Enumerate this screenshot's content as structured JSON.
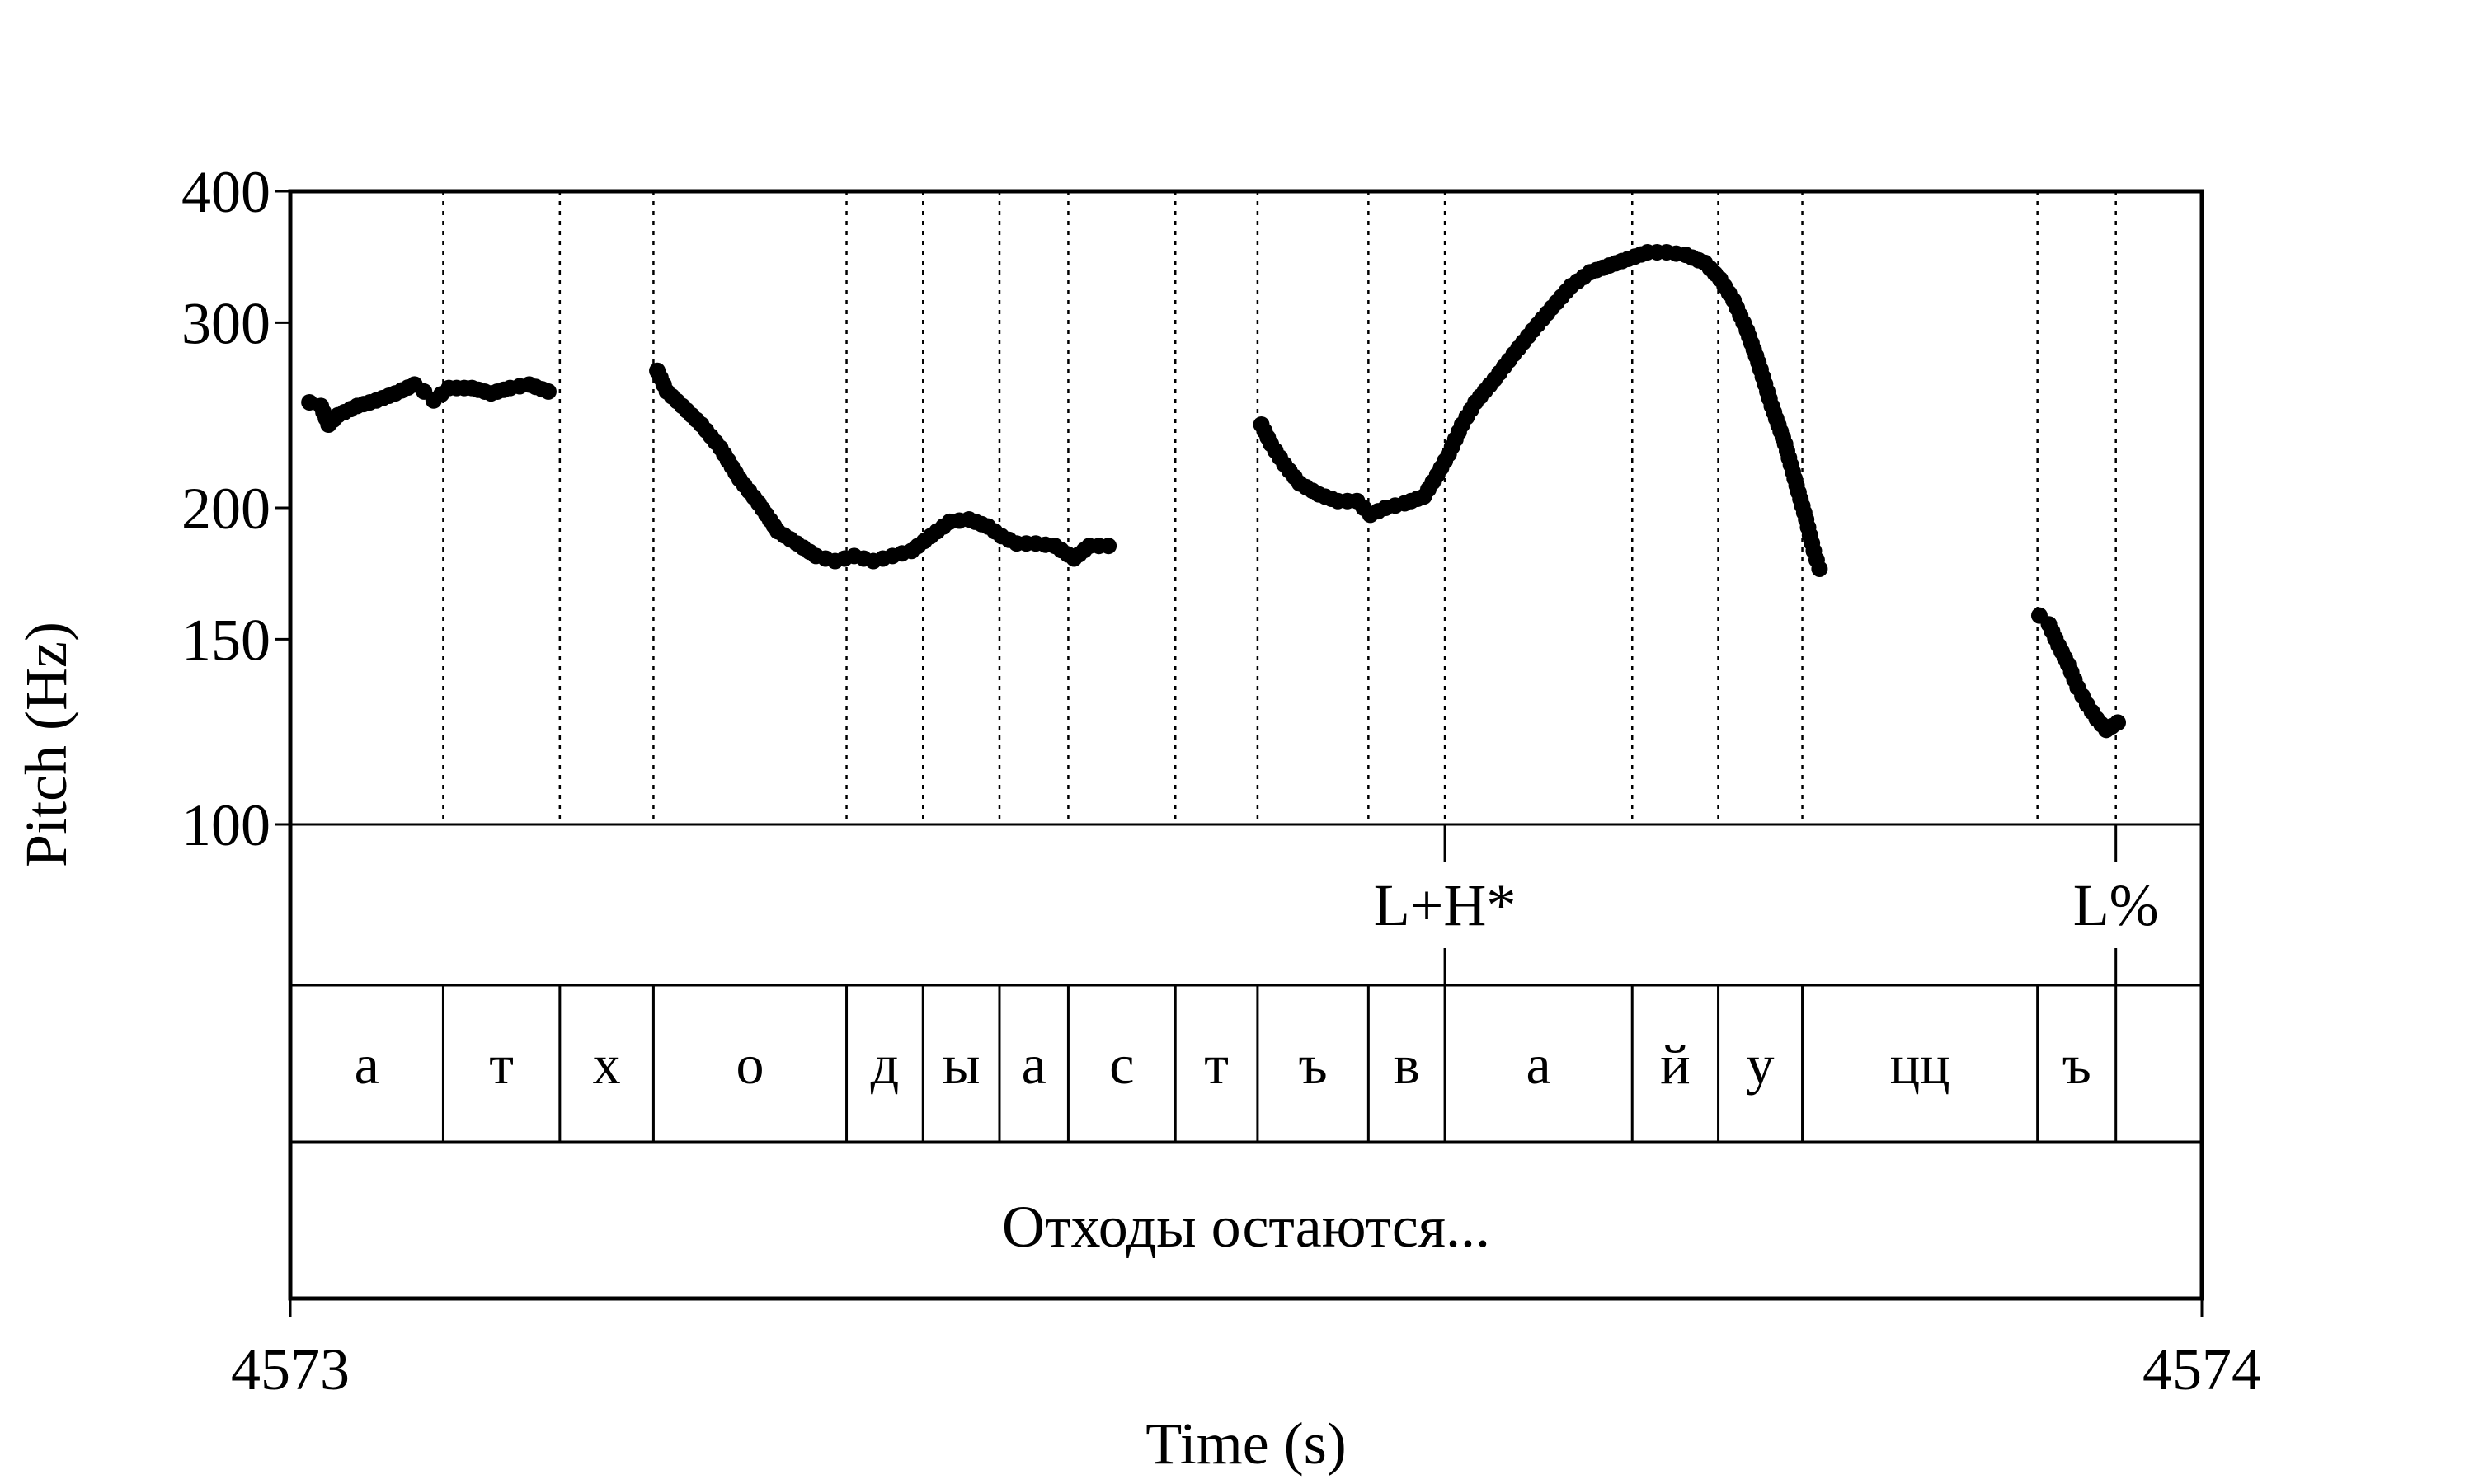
{
  "chart_data": {
    "type": "scatter",
    "title": "",
    "xlabel": "Time (s)",
    "ylabel": "Pitch (Hz)",
    "xlim": [
      4573,
      4574
    ],
    "ylim": [
      100,
      400
    ],
    "yscale": "log",
    "x_ticks": [
      "4573",
      "4574"
    ],
    "y_ticks": [
      {
        "value": 100,
        "label": "100"
      },
      {
        "value": 150,
        "label": "150"
      },
      {
        "value": 200,
        "label": "200"
      },
      {
        "value": 300,
        "label": "300"
      },
      {
        "value": 400,
        "label": "400"
      }
    ],
    "segment_boundaries": [
      4573.08,
      4573.141,
      4573.19,
      4573.291,
      4573.331,
      4573.371,
      4573.407,
      4573.463,
      4573.506,
      4573.564,
      4573.604,
      4573.702,
      4573.747,
      4573.791,
      4573.914,
      4573.955
    ],
    "segments": [
      {
        "label": "а",
        "start": 4573.0,
        "end": 4573.08
      },
      {
        "label": "т",
        "start": 4573.08,
        "end": 4573.141
      },
      {
        "label": "х",
        "start": 4573.141,
        "end": 4573.19
      },
      {
        "label": "о",
        "start": 4573.19,
        "end": 4573.291
      },
      {
        "label": "д",
        "start": 4573.291,
        "end": 4573.331
      },
      {
        "label": "ы",
        "start": 4573.331,
        "end": 4573.371
      },
      {
        "label": "а",
        "start": 4573.371,
        "end": 4573.407
      },
      {
        "label": "с",
        "start": 4573.407,
        "end": 4573.463
      },
      {
        "label": "т",
        "start": 4573.463,
        "end": 4573.506
      },
      {
        "label": "ъ",
        "start": 4573.506,
        "end": 4573.564
      },
      {
        "label": "в",
        "start": 4573.564,
        "end": 4573.604
      },
      {
        "label": "а",
        "start": 4573.604,
        "end": 4573.702
      },
      {
        "label": "й",
        "start": 4573.702,
        "end": 4573.747
      },
      {
        "label": "у",
        "start": 4573.747,
        "end": 4573.791
      },
      {
        "label": "цц",
        "start": 4573.791,
        "end": 4573.914
      },
      {
        "label": "ъ",
        "start": 4573.914,
        "end": 4573.955
      },
      {
        "label": "",
        "start": 4573.955,
        "end": 4574.0
      }
    ],
    "tones": [
      {
        "label": "L+H*",
        "time": 4573.604
      },
      {
        "label": "L%",
        "time": 4573.955
      }
    ],
    "utterance": "Отходы остаются...",
    "pitch_series": [
      {
        "points": [
          [
            4573.01,
            252
          ],
          [
            4573.016,
            250
          ],
          [
            4573.02,
            240
          ],
          [
            4573.025,
            245
          ],
          [
            4573.035,
            250
          ],
          [
            4573.045,
            253
          ],
          [
            4573.055,
            257
          ],
          [
            4573.065,
            262
          ],
          [
            4573.07,
            258
          ],
          [
            4573.075,
            253
          ],
          [
            4573.083,
            260
          ],
          [
            4573.095,
            260
          ],
          [
            4573.105,
            257
          ],
          [
            4573.115,
            260
          ],
          [
            4573.125,
            262
          ],
          [
            4573.135,
            258
          ]
        ]
      },
      {
        "points": [
          [
            4573.192,
            270
          ],
          [
            4573.197,
            258
          ],
          [
            4573.205,
            250
          ],
          [
            4573.215,
            240
          ],
          [
            4573.225,
            228
          ],
          [
            4573.235,
            213
          ],
          [
            4573.245,
            202
          ],
          [
            4573.255,
            190
          ],
          [
            4573.265,
            185
          ],
          [
            4573.275,
            180
          ],
          [
            4573.285,
            178
          ],
          [
            4573.295,
            180
          ],
          [
            4573.305,
            178
          ],
          [
            4573.315,
            180
          ],
          [
            4573.325,
            182
          ],
          [
            4573.335,
            188
          ],
          [
            4573.345,
            194
          ],
          [
            4573.355,
            195
          ],
          [
            4573.365,
            192
          ],
          [
            4573.372,
            188
          ],
          [
            4573.38,
            185
          ],
          [
            4573.39,
            185
          ],
          [
            4573.4,
            184
          ],
          [
            4573.41,
            179
          ],
          [
            4573.418,
            184
          ],
          [
            4573.428,
            184
          ]
        ]
      },
      {
        "points": [
          [
            4573.508,
            240
          ],
          [
            4573.513,
            230
          ],
          [
            4573.52,
            220
          ],
          [
            4573.528,
            211
          ],
          [
            4573.538,
            206
          ],
          [
            4573.548,
            203
          ],
          [
            4573.558,
            203
          ],
          [
            4573.565,
            197
          ],
          [
            4573.573,
            200
          ],
          [
            4573.583,
            202
          ],
          [
            4573.593,
            205
          ],
          [
            4573.6,
            215
          ],
          [
            4573.606,
            225
          ],
          [
            4573.613,
            240
          ],
          [
            4573.62,
            252
          ],
          [
            4573.63,
            265
          ],
          [
            4573.64,
            280
          ],
          [
            4573.65,
            295
          ],
          [
            4573.66,
            310
          ],
          [
            4573.67,
            325
          ],
          [
            4573.68,
            335
          ],
          [
            4573.69,
            340
          ],
          [
            4573.7,
            345
          ],
          [
            4573.71,
            350
          ],
          [
            4573.72,
            350
          ],
          [
            4573.73,
            348
          ],
          [
            4573.74,
            342
          ],
          [
            4573.748,
            330
          ],
          [
            4573.755,
            315
          ],
          [
            4573.762,
            295
          ],
          [
            4573.768,
            275
          ],
          [
            4573.775,
            250
          ],
          [
            4573.782,
            230
          ],
          [
            4573.788,
            210
          ],
          [
            4573.793,
            195
          ],
          [
            4573.797,
            182
          ],
          [
            4573.8,
            175
          ]
        ]
      },
      {
        "points": [
          [
            4573.915,
            158
          ],
          [
            4573.92,
            155
          ],
          [
            4573.925,
            148
          ],
          [
            4573.93,
            142
          ],
          [
            4573.935,
            135
          ],
          [
            4573.94,
            130
          ],
          [
            4573.945,
            126
          ],
          [
            4573.95,
            123
          ],
          [
            4573.956,
            125
          ]
        ]
      }
    ]
  }
}
